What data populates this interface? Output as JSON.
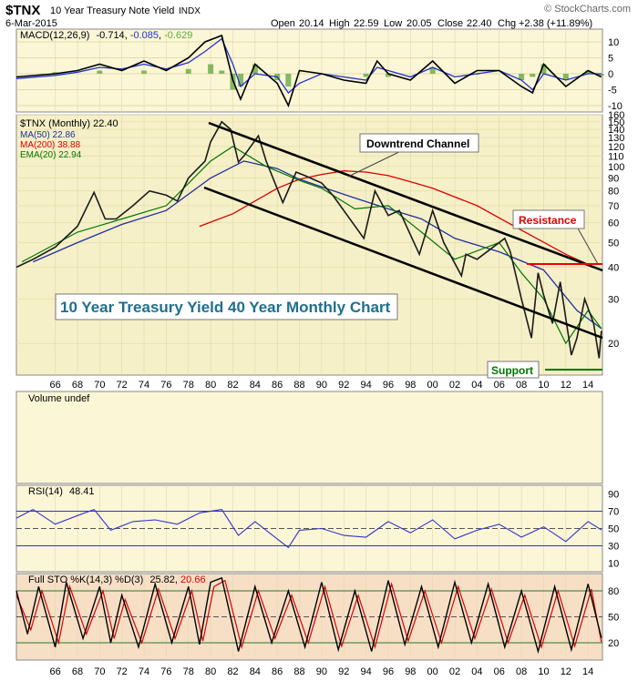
{
  "header": {
    "symbol": "$TNX",
    "description": "10 Year Treasury Note Yield",
    "exchange": "INDX",
    "date": "6-Mar-2015",
    "watermark": "© StockCharts.com",
    "quote": {
      "open_label": "Open",
      "open": "20.14",
      "high_label": "High",
      "high": "22.59",
      "low_label": "Low",
      "low": "20.05",
      "close_label": "Close",
      "close": "22.40",
      "chg_label": "Chg",
      "chg": "+2.38 (+11.89%)"
    }
  },
  "colors": {
    "price_bg": "#f5f0c8",
    "panel_bg": "#fbf6d6",
    "sto_bg": "#f7dfc6",
    "price": "#1a1a1a",
    "up": "#000000",
    "down": "#cc0000",
    "ma50": "#1f2f9f",
    "ma200": "#dd0000",
    "ema20": "#007700",
    "macd": "#000000",
    "signal": "#2233cc",
    "histogram": "#66aa44",
    "rsi": "#3333cc",
    "sto_k": "#000000",
    "sto_d": "#dd0000"
  },
  "x_axis": {
    "tick_labels": [
      "66",
      "68",
      "70",
      "72",
      "74",
      "76",
      "78",
      "80",
      "82",
      "84",
      "86",
      "88",
      "90",
      "92",
      "94",
      "96",
      "98",
      "00",
      "02",
      "04",
      "06",
      "08",
      "10",
      "12",
      "14"
    ]
  },
  "chart_data": [
    {
      "type": "line",
      "panel": "MACD",
      "legend": {
        "label": "MACD(12,26,9)",
        "macd": "-0.714",
        "signal": "-0.085",
        "histogram": "-0.629"
      },
      "y_ticks": [
        "10",
        "5",
        "0",
        "-5",
        "-10"
      ],
      "ylim": [
        -12,
        14
      ],
      "series": [
        {
          "name": "MACD",
          "x": [
            1962.5,
            1966,
            1968,
            1970,
            1972,
            1974,
            1976,
            1978,
            1979.5,
            1981,
            1982,
            1982.7,
            1984,
            1986,
            1987,
            1988,
            1990,
            1992,
            1994,
            1995,
            1996,
            1998,
            2000,
            2002,
            2004,
            2006,
            2008,
            2009,
            2010,
            2012,
            2014,
            2015.2
          ],
          "values": [
            -1,
            0,
            1,
            3,
            1,
            4,
            1,
            5,
            10,
            12,
            -2,
            -8,
            3,
            -3,
            -10,
            1,
            0,
            -2,
            -3,
            4,
            0,
            -2,
            4,
            -3,
            1,
            1,
            -4,
            -6,
            3,
            -4,
            1,
            -1
          ]
        },
        {
          "name": "Signal",
          "x": [
            1962.5,
            1966,
            1968,
            1970,
            1972,
            1974,
            1976,
            1978,
            1979.5,
            1981,
            1982,
            1982.7,
            1984,
            1986,
            1987,
            1988,
            1990,
            1992,
            1994,
            1995,
            1996,
            1998,
            2000,
            2002,
            2004,
            2006,
            2008,
            2009,
            2010,
            2012,
            2014,
            2015.2
          ],
          "values": [
            -1.5,
            -0.5,
            0.5,
            2,
            1.5,
            3,
            1.5,
            3.5,
            7,
            11,
            3,
            -4,
            0,
            -1,
            -6,
            -3,
            0,
            -1,
            -2,
            2,
            1,
            -1,
            2,
            -1,
            0,
            1,
            -2,
            -5,
            0,
            -2,
            0,
            0
          ]
        },
        {
          "name": "Histogram",
          "x": [
            1966,
            1970,
            1974,
            1978,
            1980,
            1981,
            1982,
            1982.7,
            1984,
            1986,
            1987,
            1990,
            1994,
            1996,
            2000,
            2004,
            2008,
            2009,
            2010,
            2012,
            2014,
            2015.2
          ],
          "values": [
            0.5,
            1,
            1,
            1.5,
            3,
            1,
            -5,
            -4,
            3,
            -2,
            -4,
            0,
            -1,
            -1,
            2,
            0,
            -2,
            -1,
            3,
            -2,
            1,
            -0.6
          ]
        }
      ]
    },
    {
      "type": "line",
      "panel": "Price",
      "y_scale": "log",
      "legend": {
        "price": "$TNX (Monthly) 22.40",
        "ma50": "MA(50) 22.86",
        "ma200": "MA(200) 38.88",
        "ema20": "EMA(20) 22.94"
      },
      "y_ticks": [
        "160",
        "150",
        "140",
        "130",
        "120",
        "110",
        "100",
        "90",
        "80",
        "70",
        "60",
        "50",
        "40",
        "30",
        "20"
      ],
      "ylim": [
        15,
        160
      ],
      "annotations": {
        "title_box": "10 Year Treasury Yield 40 Year Monthly Chart",
        "channel": "Downtrend Channel",
        "resistance": "Resistance",
        "support": "Support"
      },
      "series": [
        {
          "name": "$TNX",
          "x": [
            1962.5,
            1964,
            1966,
            1968,
            1969.5,
            1970.5,
            1971.5,
            1973,
            1974.5,
            1976,
            1977,
            1978,
            1979.5,
            1980,
            1981,
            1981.8,
            1982.5,
            1983,
            1984.3,
            1985,
            1986.5,
            1987.7,
            1988.5,
            1990,
            1991,
            1993.8,
            1994.8,
            1996,
            1997,
            1998.8,
            2000,
            2001,
            2002.6,
            2003,
            2004,
            2006.5,
            2007,
            2008,
            2008.9,
            2009.5,
            2010,
            2010.8,
            2011.5,
            2012.5,
            2013,
            2013.7,
            2014.5,
            2015.0,
            2015.2
          ],
          "values": [
            40,
            43,
            48,
            58,
            79,
            62,
            62,
            70,
            80,
            77,
            73,
            90,
            105,
            125,
            150,
            140,
            104,
            110,
            132,
            105,
            72,
            95,
            92,
            86,
            77,
            52,
            80,
            64,
            67,
            45,
            67,
            50,
            37,
            45,
            43,
            52,
            46,
            30,
            21,
            38,
            31,
            24,
            35,
            18,
            21,
            30,
            24,
            17.5,
            22.4
          ]
        },
        {
          "name": "MA(50)",
          "x": [
            1964,
            1968,
            1972,
            1976,
            1980,
            1983,
            1986,
            1988,
            1990,
            1993,
            1996,
            1999,
            2002,
            2006,
            2010,
            2013,
            2015.2
          ],
          "values": [
            42,
            50,
            59,
            67,
            90,
            105,
            98,
            89,
            83,
            75,
            68,
            62,
            52,
            46,
            39,
            27,
            22.9
          ]
        },
        {
          "name": "MA(200)",
          "x": [
            1979,
            1982,
            1984,
            1986,
            1988,
            1990,
            1992,
            1994,
            1996,
            1998,
            2000,
            2004,
            2008,
            2012,
            2015.2
          ],
          "values": [
            58,
            65,
            73,
            82,
            89,
            93,
            96,
            95,
            92,
            87,
            82,
            70,
            56,
            45,
            38.9
          ]
        },
        {
          "name": "EMA(20)",
          "x": [
            1963,
            1968,
            1972,
            1976,
            1980,
            1982,
            1985,
            1988,
            1990,
            1993,
            1996,
            1999,
            2002,
            2006,
            2008,
            2010,
            2012,
            2014,
            2015.2
          ],
          "values": [
            42,
            55,
            62,
            70,
            105,
            120,
            100,
            88,
            82,
            68,
            70,
            55,
            43,
            50,
            38,
            30,
            20,
            27,
            22.9
          ]
        }
      ]
    },
    {
      "type": "bar",
      "panel": "Volume",
      "legend": {
        "label": "Volume undef"
      },
      "values": []
    },
    {
      "type": "line",
      "panel": "RSI",
      "legend": {
        "label": "RSI(14)",
        "value": "48.41"
      },
      "y_ticks": [
        "90",
        "70",
        "50",
        "30",
        "10"
      ],
      "ylim": [
        0,
        100
      ],
      "levels": [
        70,
        50,
        30
      ],
      "series": [
        {
          "name": "RSI(14)",
          "x": [
            1962.5,
            1964,
            1966,
            1968,
            1969.5,
            1971,
            1973,
            1975,
            1977,
            1979,
            1981,
            1982.5,
            1984,
            1986,
            1987,
            1988,
            1990,
            1992,
            1994,
            1996,
            1998,
            2000,
            2002,
            2004,
            2006,
            2008,
            2010,
            2012,
            2014,
            2015.2
          ],
          "values": [
            62,
            72,
            55,
            65,
            72,
            48,
            58,
            60,
            55,
            68,
            72,
            42,
            58,
            38,
            28,
            48,
            50,
            42,
            40,
            58,
            45,
            60,
            38,
            48,
            55,
            40,
            52,
            35,
            58,
            48.4
          ]
        }
      ]
    },
    {
      "type": "line",
      "panel": "Full STO",
      "legend": {
        "label": "Full STO %K(14,3) %D(3)",
        "k": "25.82",
        "d": "20.66"
      },
      "y_ticks": [
        "80",
        "50",
        "20"
      ],
      "ylim": [
        0,
        100
      ],
      "levels": [
        80,
        50,
        20
      ],
      "series": [
        {
          "name": "%K",
          "x": [
            1962.5,
            1963.5,
            1964.5,
            1966,
            1967,
            1968.5,
            1970,
            1971,
            1972,
            1973.5,
            1975,
            1976.5,
            1978,
            1979,
            1980,
            1981,
            1982.5,
            1984,
            1985.5,
            1987,
            1988.5,
            1990,
            1991.5,
            1993,
            1994.5,
            1996,
            1997.5,
            1999,
            2000.5,
            2002,
            2003.5,
            2005,
            2006.5,
            2008,
            2009.5,
            2011,
            2012.5,
            2014,
            2015.2
          ],
          "values": [
            80,
            30,
            85,
            15,
            90,
            25,
            85,
            20,
            75,
            15,
            88,
            20,
            85,
            18,
            90,
            95,
            10,
            85,
            20,
            80,
            15,
            90,
            12,
            80,
            10,
            92,
            18,
            85,
            15,
            90,
            20,
            88,
            15,
            80,
            10,
            85,
            12,
            88,
            25.8
          ]
        },
        {
          "name": "%D",
          "x": [
            1962.5,
            1963.8,
            1964.8,
            1966.3,
            1967.3,
            1968.8,
            1970.3,
            1971.3,
            1972.3,
            1973.8,
            1975.3,
            1976.8,
            1978.3,
            1979.3,
            1980.3,
            1981.3,
            1982.8,
            1984.3,
            1985.8,
            1987.3,
            1988.8,
            1990.3,
            1991.8,
            1993.3,
            1994.8,
            1996.3,
            1997.8,
            1999.3,
            2000.8,
            2002.3,
            2003.8,
            2005.3,
            2006.8,
            2008.3,
            2009.8,
            2011.3,
            2012.8,
            2014.3,
            2015.2
          ],
          "values": [
            75,
            35,
            80,
            20,
            85,
            30,
            80,
            25,
            70,
            20,
            82,
            25,
            80,
            22,
            85,
            92,
            15,
            80,
            25,
            75,
            20,
            85,
            16,
            75,
            15,
            88,
            22,
            80,
            20,
            85,
            25,
            82,
            20,
            75,
            15,
            80,
            16,
            82,
            20.7
          ]
        }
      ]
    }
  ]
}
